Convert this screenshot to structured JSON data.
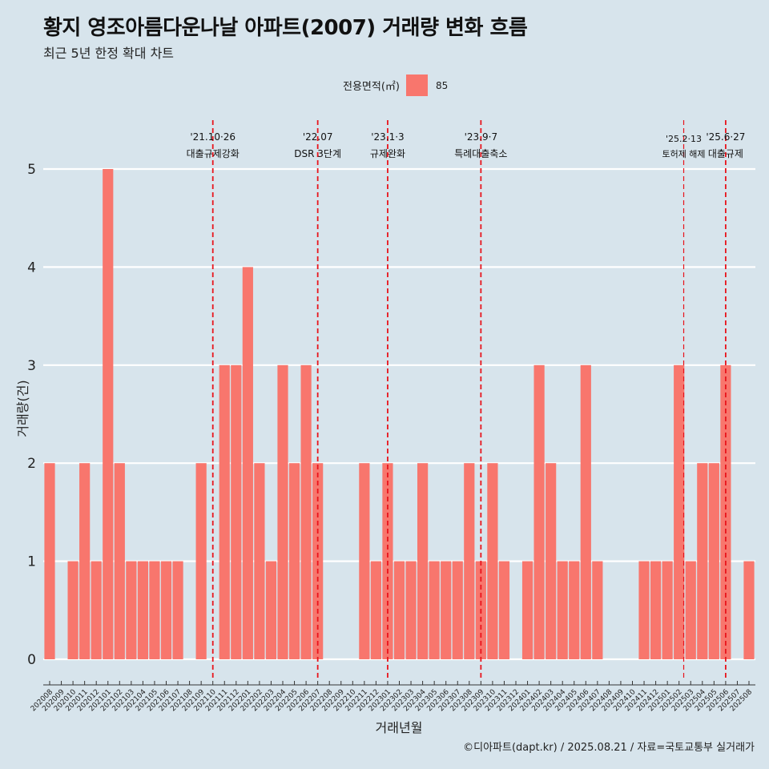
{
  "title": "황지 영조아름다운나날 아파트(2007) 거래량 변화 흐름",
  "subtitle": "최근 5년 한정 확대 차트",
  "legend": {
    "title": "전용면적(㎡)",
    "entry": "85"
  },
  "footer": "©디아파트(dapt.kr) / 2025.08.21 / 자료=국토교통부 실거래가",
  "colors": {
    "bar": "#f8766d",
    "background": "#d7e4ec",
    "grid": "#ffffff",
    "vline": "#e8141c"
  },
  "chart_data": {
    "type": "bar",
    "xlabel": "거래년월",
    "ylabel": "거래량(건)",
    "ylim": [
      0,
      5
    ],
    "yticks": [
      0,
      1,
      2,
      3,
      4,
      5
    ],
    "grid": true,
    "legend_position": "top",
    "categories": [
      "202008",
      "202009",
      "202010",
      "202011",
      "202012",
      "202101",
      "202102",
      "202103",
      "202104",
      "202105",
      "202106",
      "202107",
      "202108",
      "202109",
      "202110",
      "202111",
      "202112",
      "202201",
      "202202",
      "202203",
      "202204",
      "202205",
      "202206",
      "202207",
      "202208",
      "202209",
      "202210",
      "202211",
      "202212",
      "202301",
      "202302",
      "202303",
      "202304",
      "202305",
      "202306",
      "202307",
      "202308",
      "202309",
      "202310",
      "202311",
      "202312",
      "202401",
      "202402",
      "202403",
      "202404",
      "202405",
      "202406",
      "202407",
      "202408",
      "202409",
      "202410",
      "202411",
      "202412",
      "202501",
      "202502",
      "202503",
      "202504",
      "202505",
      "202506",
      "202507",
      "202508"
    ],
    "series": [
      {
        "name": "85",
        "values": [
          2,
          0,
          1,
          2,
          1,
          5,
          2,
          1,
          1,
          1,
          1,
          1,
          0,
          2,
          0,
          3,
          3,
          4,
          2,
          1,
          3,
          2,
          3,
          2,
          0,
          0,
          0,
          2,
          1,
          2,
          1,
          1,
          2,
          1,
          1,
          1,
          2,
          1,
          2,
          1,
          0,
          1,
          3,
          2,
          1,
          1,
          3,
          1,
          0,
          0,
          0,
          1,
          1,
          1,
          3,
          1,
          2,
          2,
          3,
          0,
          1
        ]
      }
    ],
    "annotations": [
      {
        "category_position": 14.0,
        "date": "'21.10·26",
        "label": "대출규제강화"
      },
      {
        "category_position": 23.0,
        "date": "'22.07",
        "label": "DSR 3단계"
      },
      {
        "category_position": 29.0,
        "date": "'23.1·3",
        "label": "규제완화"
      },
      {
        "category_position": 37.0,
        "date": "'23.9·7",
        "label": "특례대출축소"
      },
      {
        "category_position": 54.4,
        "date": "'25.2·13",
        "label": "토허제 해제"
      },
      {
        "category_position": 58.0,
        "date": "'25.6·27",
        "label": "대출규제"
      }
    ]
  }
}
